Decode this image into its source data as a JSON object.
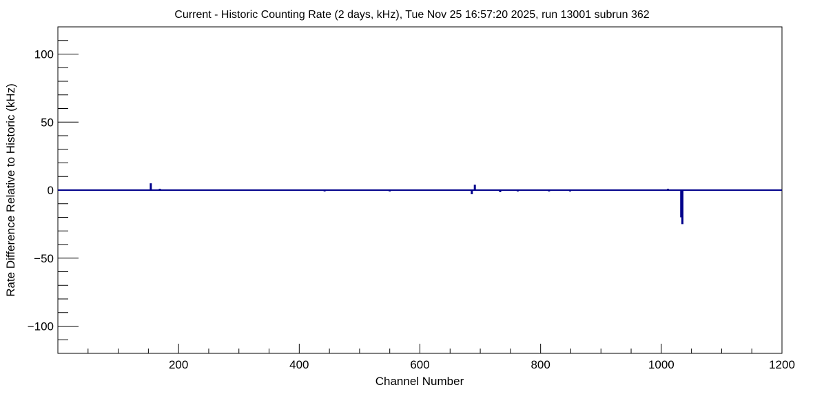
{
  "chart_data": {
    "type": "bar",
    "title": "Current - Historic Counting Rate (2 days, kHz), Tue Nov 25 16:57:20 2025, run 13001 subrun 362",
    "xlabel": "Channel Number",
    "ylabel": "Rate Difference Relative to Historic (kHz)",
    "xlim": [
      0,
      1200
    ],
    "ylim": [
      -120,
      120
    ],
    "x_ticks": [
      200,
      400,
      600,
      800,
      1000,
      1200
    ],
    "y_ticks": [
      -100,
      -50,
      0,
      50,
      100
    ],
    "x_tick_labels": [
      "200",
      "400",
      "600",
      "800",
      "1000",
      "1200"
    ],
    "y_tick_labels": [
      "−100",
      "−50",
      "0",
      "50",
      "100"
    ],
    "grid": false,
    "legend": "none",
    "color": "#00008b",
    "baseline": 0,
    "series": [
      {
        "points": [
          {
            "x": 154,
            "y": 5
          },
          {
            "x": 169,
            "y": 1
          },
          {
            "x": 442,
            "y": -1
          },
          {
            "x": 550,
            "y": -1
          },
          {
            "x": 686,
            "y": -3
          },
          {
            "x": 691,
            "y": 4
          },
          {
            "x": 733,
            "y": -1.5
          },
          {
            "x": 762,
            "y": -1
          },
          {
            "x": 779,
            "y": 0.5
          },
          {
            "x": 814,
            "y": -1
          },
          {
            "x": 849,
            "y": -1
          },
          {
            "x": 1011,
            "y": 1
          },
          {
            "x": 1033,
            "y": -20
          },
          {
            "x": 1035,
            "y": -25
          },
          {
            "x": 1090,
            "y": 0.5
          }
        ]
      }
    ]
  }
}
